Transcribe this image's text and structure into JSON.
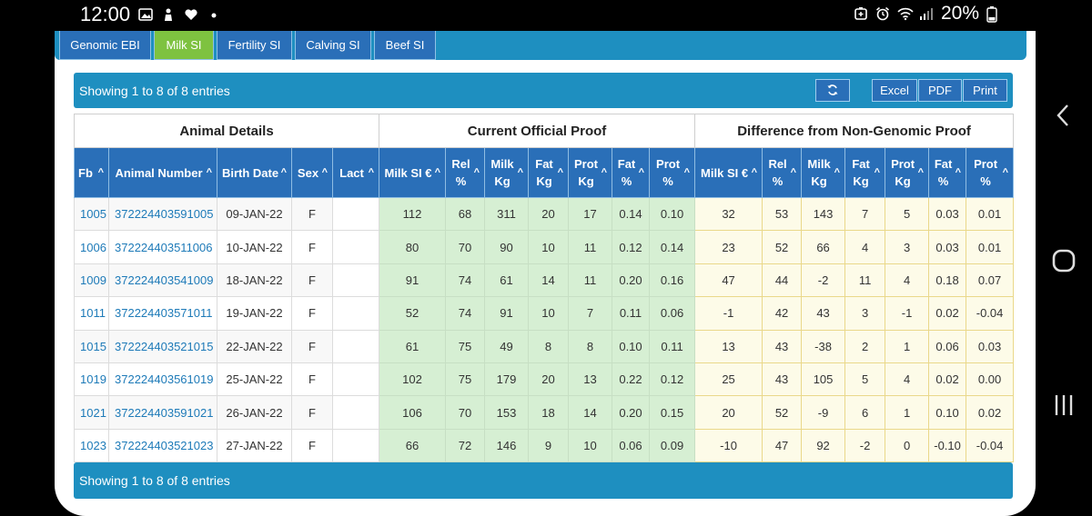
{
  "status_bar": {
    "time": "12:00",
    "left_icons": [
      "gallery-icon",
      "person-icon",
      "heart-icon",
      "dot-icon"
    ],
    "right_icons": [
      "battery-saver-icon",
      "alarm-icon",
      "wifi-icon",
      "signal-icon",
      "battery-icon"
    ],
    "battery": "20%"
  },
  "tabs": [
    {
      "label": "Genomic EBI",
      "active": false
    },
    {
      "label": "Milk SI",
      "active": true
    },
    {
      "label": "Fertility SI",
      "active": false
    },
    {
      "label": "Calving SI",
      "active": false
    },
    {
      "label": "Beef SI",
      "active": false
    }
  ],
  "toolbar": {
    "info": "Showing 1 to 8 of 8 entries",
    "refresh_icon": "refresh-icon",
    "excel_label": "Excel",
    "pdf_label": "PDF",
    "print_label": "Print"
  },
  "table": {
    "groups": [
      "Animal Details",
      "Current Official Proof",
      "Difference from Non-Genomic Proof"
    ],
    "columns": [
      {
        "line1": "Fb",
        "line2": ""
      },
      {
        "line1": "Animal Number",
        "line2": ""
      },
      {
        "line1": "Birth Date",
        "line2": ""
      },
      {
        "line1": "Sex",
        "line2": ""
      },
      {
        "line1": "Lact",
        "line2": ""
      },
      {
        "line1": "Milk SI €",
        "line2": ""
      },
      {
        "line1": "Rel",
        "line2": "%"
      },
      {
        "line1": "Milk",
        "line2": "Kg"
      },
      {
        "line1": "Fat",
        "line2": "Kg"
      },
      {
        "line1": "Prot",
        "line2": "Kg"
      },
      {
        "line1": "Fat",
        "line2": "%"
      },
      {
        "line1": "Prot",
        "line2": "%"
      },
      {
        "line1": "Milk SI €",
        "line2": ""
      },
      {
        "line1": "Rel",
        "line2": "%"
      },
      {
        "line1": "Milk",
        "line2": "Kg"
      },
      {
        "line1": "Fat",
        "line2": "Kg"
      },
      {
        "line1": "Prot",
        "line2": "Kg"
      },
      {
        "line1": "Fat",
        "line2": "%"
      },
      {
        "line1": "Prot",
        "line2": "%"
      }
    ],
    "sort_icon": "^",
    "rows": [
      [
        "1005",
        "372224403591005",
        "09-JAN-22",
        "F",
        "",
        "112",
        "68",
        "311",
        "20",
        "17",
        "0.14",
        "0.10",
        "32",
        "53",
        "143",
        "7",
        "5",
        "0.03",
        "0.01"
      ],
      [
        "1006",
        "372224403511006",
        "10-JAN-22",
        "F",
        "",
        "80",
        "70",
        "90",
        "10",
        "11",
        "0.12",
        "0.14",
        "23",
        "52",
        "66",
        "4",
        "3",
        "0.03",
        "0.01"
      ],
      [
        "1009",
        "372224403541009",
        "18-JAN-22",
        "F",
        "",
        "91",
        "74",
        "61",
        "14",
        "11",
        "0.20",
        "0.16",
        "47",
        "44",
        "-2",
        "11",
        "4",
        "0.18",
        "0.07"
      ],
      [
        "1011",
        "372224403571011",
        "19-JAN-22",
        "F",
        "",
        "52",
        "74",
        "91",
        "10",
        "7",
        "0.11",
        "0.06",
        "-1",
        "42",
        "43",
        "3",
        "-1",
        "0.02",
        "-0.04"
      ],
      [
        "1015",
        "372224403521015",
        "22-JAN-22",
        "F",
        "",
        "61",
        "75",
        "49",
        "8",
        "8",
        "0.10",
        "0.11",
        "13",
        "43",
        "-38",
        "2",
        "1",
        "0.06",
        "0.03"
      ],
      [
        "1019",
        "372224403561019",
        "25-JAN-22",
        "F",
        "",
        "102",
        "75",
        "179",
        "20",
        "13",
        "0.22",
        "0.12",
        "25",
        "43",
        "105",
        "5",
        "4",
        "0.02",
        "0.00"
      ],
      [
        "1021",
        "372224403591021",
        "26-JAN-22",
        "F",
        "",
        "106",
        "70",
        "153",
        "18",
        "14",
        "0.20",
        "0.15",
        "20",
        "52",
        "-9",
        "6",
        "1",
        "0.10",
        "0.02"
      ],
      [
        "1023",
        "372224403521023",
        "27-JAN-22",
        "F",
        "",
        "66",
        "72",
        "146",
        "9",
        "10",
        "0.06",
        "0.09",
        "-10",
        "47",
        "92",
        "-2",
        "0",
        "-0.10",
        "-0.04"
      ]
    ]
  },
  "footer": {
    "info": "Showing 1 to 8 of 8 entries"
  },
  "nav_bar": {
    "icons": [
      "back-icon",
      "home-icon",
      "recents-icon"
    ]
  },
  "colors": {
    "header_blue": "#1e8fc0",
    "column_header": "#2a6fb8",
    "active_tab": "#7ec240",
    "current_proof_cell": "#d6efd3",
    "difference_cell": "#fdfbe8",
    "link": "#1d7ab8"
  }
}
